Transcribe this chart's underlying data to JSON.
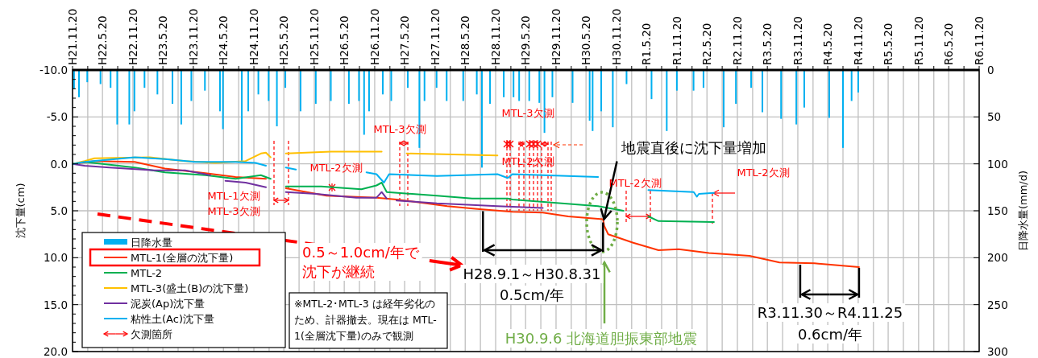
{
  "chart_data": {
    "type": "line",
    "ylabel": "沈下量(cm)",
    "y2label": "日降水量(mm/d)",
    "xlim": [
      "2009-11-20",
      "2024-11-20"
    ],
    "xticks": [
      {
        "value": "2009-11-20",
        "label": "H21.11.20"
      },
      {
        "value": "2010-02-20",
        "label": null
      },
      {
        "value": "2010-05-20",
        "label": "H22.5.20"
      },
      {
        "value": "2010-08-20",
        "label": null
      },
      {
        "value": "2010-11-20",
        "label": "H22.11.20"
      },
      {
        "value": "2011-02-20",
        "label": null
      },
      {
        "value": "2011-05-20",
        "label": "H23.5.20"
      },
      {
        "value": "2011-08-20",
        "label": null
      },
      {
        "value": "2011-11-20",
        "label": "H23.11.20"
      },
      {
        "value": "2012-02-20",
        "label": null
      },
      {
        "value": "2012-05-20",
        "label": "H24.5.20"
      },
      {
        "value": "2012-08-20",
        "label": null
      },
      {
        "value": "2012-11-20",
        "label": "H24.11.20"
      },
      {
        "value": "2013-02-20",
        "label": null
      },
      {
        "value": "2013-05-20",
        "label": "H25.5.20"
      },
      {
        "value": "2013-08-20",
        "label": null
      },
      {
        "value": "2013-11-20",
        "label": "H25.11.20"
      },
      {
        "value": "2014-02-20",
        "label": null
      },
      {
        "value": "2014-05-20",
        "label": "H26.5.20"
      },
      {
        "value": "2014-08-20",
        "label": null
      },
      {
        "value": "2014-11-20",
        "label": "H26.11.20"
      },
      {
        "value": "2015-02-20",
        "label": null
      },
      {
        "value": "2015-05-20",
        "label": "H27.5.20"
      },
      {
        "value": "2015-08-20",
        "label": null
      },
      {
        "value": "2015-11-20",
        "label": "H27.11.20"
      },
      {
        "value": "2016-02-20",
        "label": null
      },
      {
        "value": "2016-05-20",
        "label": "H28.5.20"
      },
      {
        "value": "2016-08-20",
        "label": null
      },
      {
        "value": "2016-11-20",
        "label": "H28.11.20"
      },
      {
        "value": "2017-02-20",
        "label": null
      },
      {
        "value": "2017-05-20",
        "label": "H29.5.20"
      },
      {
        "value": "2017-08-20",
        "label": null
      },
      {
        "value": "2017-11-20",
        "label": "H29.11.20"
      },
      {
        "value": "2018-02-20",
        "label": null
      },
      {
        "value": "2018-05-20",
        "label": "H30.5.20"
      },
      {
        "value": "2018-08-20",
        "label": null
      },
      {
        "value": "2018-11-20",
        "label": "H30.11.20"
      },
      {
        "value": "2019-02-20",
        "label": null
      },
      {
        "value": "2019-05-20",
        "label": "R1.5.20"
      },
      {
        "value": "2019-08-20",
        "label": null
      },
      {
        "value": "2019-11-20",
        "label": "R1.11.20"
      },
      {
        "value": "2020-02-20",
        "label": null
      },
      {
        "value": "2020-05-20",
        "label": "R2.5.20"
      },
      {
        "value": "2020-08-20",
        "label": null
      },
      {
        "value": "2020-11-20",
        "label": "R2.11.20"
      },
      {
        "value": "2021-02-20",
        "label": null
      },
      {
        "value": "2021-05-20",
        "label": "R3.5.20"
      },
      {
        "value": "2021-08-20",
        "label": null
      },
      {
        "value": "2021-11-20",
        "label": "R3.11.20"
      },
      {
        "value": "2022-02-20",
        "label": null
      },
      {
        "value": "2022-05-20",
        "label": "R4.5.20"
      },
      {
        "value": "2022-08-20",
        "label": null
      },
      {
        "value": "2022-11-20",
        "label": "R4.11.20"
      },
      {
        "value": "2023-02-20",
        "label": null
      },
      {
        "value": "2023-05-20",
        "label": "R5.5.20"
      },
      {
        "value": "2023-08-20",
        "label": null
      },
      {
        "value": "2023-11-20",
        "label": "R5.11.20"
      },
      {
        "value": "2024-02-20",
        "label": null
      },
      {
        "value": "2024-05-20",
        "label": "R6.5.20"
      },
      {
        "value": "2024-08-20",
        "label": null
      },
      {
        "value": "2024-11-20",
        "label": "R6.11.20"
      }
    ],
    "ylim": [
      20,
      -10
    ],
    "yticks": [
      {
        "value": -10,
        "label": "-10.0"
      },
      {
        "value": -5,
        "label": "-5.0"
      },
      {
        "value": 0,
        "label": "0.0"
      },
      {
        "value": 5,
        "label": "5.0"
      },
      {
        "value": 10,
        "label": "10.0"
      },
      {
        "value": 15,
        "label": "15.0"
      },
      {
        "value": 20,
        "label": "20.0"
      }
    ],
    "y2lim": [
      300,
      0
    ],
    "y2ticks": [
      0,
      50,
      100,
      150,
      200,
      250,
      300
    ],
    "grid": true,
    "legend": "bottom left",
    "series": [
      {
        "name": "日降水量",
        "type": "bar",
        "axis": "y2",
        "color": "#00b0f0",
        "x": [
          "2009-11-29",
          "2009-12-29",
          "2010-02-17",
          "2010-05-08",
          "2010-07-08",
          "2010-08-17",
          "2010-10-29",
          "2010-11-29",
          "2011-01-29",
          "2011-04-17",
          "2011-07-17",
          "2011-09-08",
          "2011-11-08",
          "2012-01-29",
          "2012-04-29",
          "2012-05-17",
          "2012-09-08",
          "2012-10-17",
          "2012-12-17",
          "2013-02-17",
          "2013-04-08",
          "2013-05-29",
          "2013-08-29",
          "2013-11-29",
          "2014-02-28",
          "2014-06-17",
          "2014-08-17",
          "2014-09-17",
          "2014-10-17",
          "2015-01-08",
          "2015-02-28",
          "2015-06-08",
          "2015-08-17",
          "2015-09-17",
          "2015-11-29",
          "2016-01-29",
          "2016-05-08",
          "2016-07-29",
          "2016-08-29",
          "2016-10-17",
          "2017-01-08",
          "2017-03-08",
          "2017-04-11",
          "2017-06-11",
          "2017-08-11",
          "2017-09-11",
          "2017-10-29",
          "2018-02-28",
          "2018-06-11",
          "2018-06-29",
          "2018-08-20",
          "2018-10-29",
          "2019-01-20",
          "2019-06-20",
          "2019-09-20",
          "2019-11-20",
          "2020-02-29",
          "2020-04-29",
          "2020-08-29",
          "2020-11-11",
          "2021-02-11",
          "2021-04-20",
          "2021-08-11",
          "2021-11-11",
          "2021-12-29",
          "2022-05-29",
          "2022-08-20",
          "2022-10-11",
          "2022-11-20"
        ],
        "values": [
          20,
          29,
          13,
          15,
          19,
          58,
          58,
          44,
          19,
          26,
          36,
          58,
          33,
          22,
          44,
          63,
          97,
          44,
          26,
          33,
          60,
          19,
          44,
          36,
          33,
          36,
          33,
          69,
          44,
          26,
          33,
          19,
          83,
          33,
          19,
          33,
          33,
          26,
          104,
          36,
          29,
          29,
          33,
          33,
          35,
          67,
          29,
          35,
          54,
          65,
          44,
          61,
          15,
          31,
          65,
          22,
          22,
          19,
          61,
          36,
          19,
          45,
          52,
          58,
          40,
          51,
          83,
          33,
          24
        ]
      },
      {
        "name": "MTL-1(全層の沈下量)",
        "color": "#ff3300",
        "x": [
          "2009-11-20",
          "2010-04",
          "2010-12",
          "2011-06",
          "2012-02",
          "2012-08",
          "2013-02",
          "2013-04",
          "2013-06",
          "2013-09",
          "2014-02",
          "2014-12",
          "2015-04",
          "2016-02",
          "2016-08",
          "2017-03",
          "2017-09",
          "2018-02",
          "2018-08-31",
          "2018-09-07",
          "2018-10",
          "2019-03",
          "2019-08",
          "2019-12",
          "2020-06",
          "2021-02",
          "2021-08",
          "2022-03",
          "2022-11-25"
        ],
        "values": [
          0,
          -0.3,
          -0.2,
          0.5,
          1.0,
          1.4,
          1.6,
          null,
          2.6,
          2.9,
          3.4,
          3.6,
          3.8,
          4.5,
          4.8,
          5.1,
          5.2,
          5.6,
          5.9,
          6.6,
          7.5,
          8.4,
          9.2,
          9.1,
          9.5,
          9.8,
          10.5,
          10.6,
          11.0
        ]
      },
      {
        "name": "MTL-2",
        "color": "#00b050",
        "x": [
          "2009-11-20",
          "2010-02",
          "2010-12",
          "2011-06",
          "2012-02",
          "2012-08",
          "2013-01",
          "2013-03",
          "2013-04",
          "2013-06",
          "2014-01",
          "2014-09",
          "2014-12",
          "2015-01",
          "2015-02",
          "2015-12",
          "2016-07",
          "2017-02",
          "2017-03",
          "2018-08",
          "2019-01",
          "2019-03",
          "2019-06",
          "2019-08",
          "2020-07"
        ],
        "values": [
          0,
          -0.2,
          0.4,
          0.9,
          1.2,
          1.6,
          1.2,
          1.6,
          null,
          2.4,
          2.4,
          2.7,
          2.3,
          2.0,
          3.0,
          3.4,
          3.7,
          3.7,
          3.8,
          4.5,
          5.0,
          null,
          5.6,
          6.1,
          6.2
        ]
      },
      {
        "name": "MTL-3(盛土(B)の沈下量)",
        "color": "#ffc000",
        "x": [
          "2009-11-20",
          "2010-02",
          "2010-04",
          "2011-03",
          "2011-10",
          "2012-04",
          "2012-10",
          "2013-01",
          "2013-02",
          "2013-03",
          "2013-04",
          "2013-06",
          "2014-03",
          "2015-01",
          "2015-03",
          "2015-06",
          "2016-12"
        ],
        "values": [
          0,
          -0.3,
          -0.6,
          -0.7,
          -0.3,
          -0.1,
          -0.3,
          -1.1,
          -1.2,
          -0.7,
          null,
          -1.1,
          -1.3,
          -1.3,
          null,
          -1.1,
          -0.9
        ]
      },
      {
        "name": "泥炭(Ap)沈下量",
        "color": "#7030a0",
        "x": [
          "2009-11-20",
          "2010-02",
          "2010-07",
          "2011-04",
          "2011-10",
          "2012-03",
          "2012-05",
          "2012-06",
          "2012-10",
          "2013-02",
          "2013-04",
          "2013-06",
          "2013-12",
          "2014-08",
          "2014-12",
          "2015-01",
          "2015-02",
          "2015-03",
          "2015-04",
          "2015-12",
          "2016-12",
          "2017-09"
        ],
        "values": [
          0,
          0.2,
          0.4,
          0.7,
          0.7,
          1.2,
          null,
          1.8,
          2.0,
          2.5,
          null,
          3.0,
          3.2,
          3.6,
          3.6,
          3.0,
          3.7,
          null,
          3.9,
          4.2,
          4.5,
          4.7
        ]
      },
      {
        "name": "粘性土(Ac)沈下量",
        "color": "#00b0f0",
        "x": [
          "2009-11-20",
          "2010-02",
          "2010-12",
          "2011-06",
          "2011-12",
          "2012-04",
          "2012-08",
          "2012-12",
          "2013-02",
          "2013-04",
          "2013-06",
          "2013-08",
          "2014-02",
          "2014-10",
          "2014-12",
          "2015-01-15",
          "2015-02-15",
          "2015-12",
          "2016-12",
          "2017-02",
          "2017-03",
          "2018-08",
          "2019-01",
          "2019-06",
          "2020-03",
          "2020-03-20",
          "2020-04",
          "2020-07"
        ],
        "values": [
          0,
          -0.2,
          -0.7,
          -0.5,
          -0.2,
          -0.2,
          -0.2,
          -0.1,
          0.2,
          null,
          0.4,
          0.6,
          null,
          0.9,
          1.1,
          2.0,
          1.1,
          1.3,
          1.1,
          1.5,
          1.1,
          1.4,
          null,
          2.8,
          3.0,
          3.5,
          3.2,
          3.1
        ]
      }
    ],
    "annotations": [
      "MTL-1欠測",
      "MTL-3欠測",
      "MTL-2欠測",
      "MTL-3欠測",
      "MTL-3欠測",
      "MTL-2欠測",
      {
        "text": "地震直後に沈下量増加",
        "x": "2018-09-06",
        "y": 5.9
      },
      "MTL-2欠測",
      "MTL-2欠測",
      "0.5～1.0cm/年で沈下が継続",
      {
        "text": "H28.9.1～H30.8.31",
        "x": "2018-08-31",
        "y": 5.9
      },
      "0.5cm/年",
      "H30.9.6 北海道胆振東部地震",
      {
        "text": "R3.11.30～R4.11.25",
        "x": "2022-11-25",
        "y": 11.0
      },
      "0.6cm/年",
      "※MTL-2･MTL-3 は経年劣化のため、計器撤去。現在は MTL-1(全層沈下量)のみで観測",
      "欠測箇所"
    ]
  }
}
